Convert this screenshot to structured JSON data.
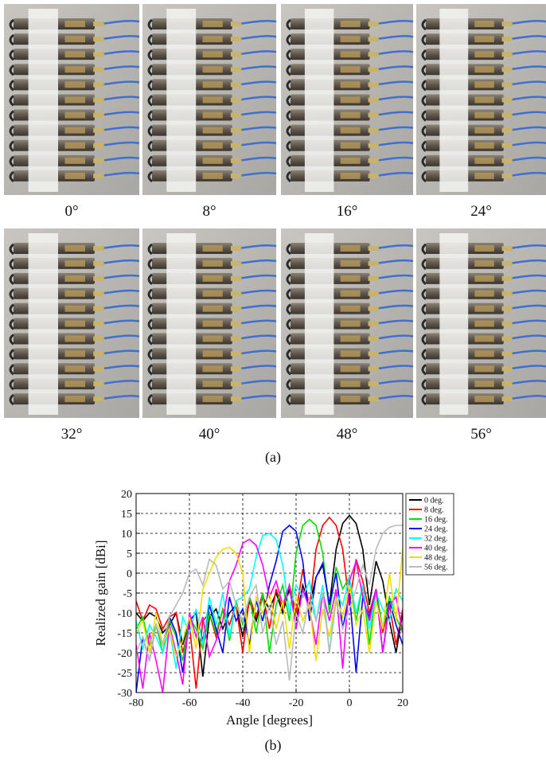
{
  "photos": {
    "captions": [
      "0°",
      "8°",
      "16°",
      "24°",
      "32°",
      "40°",
      "48°",
      "56°"
    ],
    "label": "(a)"
  },
  "chart_data": {
    "type": "line",
    "x_label": "Angle [degrees]",
    "y_label": "Realized gain [dBi]",
    "x": [
      -80,
      -77.5,
      -75,
      -72.5,
      -70,
      -67.5,
      -65,
      -62.5,
      -60,
      -57.5,
      -55,
      -52.5,
      -50,
      -47.5,
      -45,
      -42.5,
      -40,
      -37.5,
      -35,
      -32.5,
      -30,
      -27.5,
      -25,
      -22.5,
      -20,
      -17.5,
      -15,
      -12.5,
      -10,
      -7.5,
      -5,
      -2.5,
      0,
      2.5,
      5,
      7.5,
      10,
      12.5,
      15,
      17.5,
      20
    ],
    "xlim": [
      -80,
      20
    ],
    "xticks": [
      -80,
      -60,
      -40,
      -20,
      0,
      20
    ],
    "ylim": [
      -30,
      20
    ],
    "yticks": [
      -30,
      -25,
      -20,
      -15,
      -10,
      -5,
      0,
      5,
      10,
      15,
      20
    ],
    "grid": true,
    "legend": "upper right",
    "series": [
      {
        "name": "0 deg.",
        "color": "#000000",
        "values": [
          -10,
          -12,
          -10,
          -11,
          -15,
          -13,
          -10,
          -18,
          -12,
          -10,
          -26,
          -11,
          -9,
          -14,
          -10,
          -8,
          -16,
          -7,
          -12,
          -6,
          -9,
          -5,
          -10,
          -4,
          -12,
          -3,
          -8,
          -1,
          2,
          -8,
          6,
          12.5,
          14.5,
          12.5,
          6,
          -8,
          3,
          -2,
          -12,
          -20,
          -10
        ]
      },
      {
        "name": "8 deg.",
        "color": "#ff0000",
        "values": [
          -7,
          -12,
          -8,
          -9,
          -14,
          -11,
          -10,
          -20,
          -13,
          -29,
          -12,
          -10,
          -16,
          -9,
          -13,
          -8,
          -20,
          -6,
          -11,
          -5,
          -14,
          -4,
          -9,
          -3,
          -10,
          1,
          -9,
          6,
          12,
          14,
          12,
          6,
          -8,
          3.5,
          -2,
          -10,
          -4,
          -15,
          -8,
          -18,
          -9
        ]
      },
      {
        "name": "16 deg.",
        "color": "#00dd00",
        "values": [
          -14,
          -11,
          -18,
          -13,
          -20,
          -12,
          -16,
          -22,
          -11,
          -14,
          -19,
          -10,
          -15,
          -9,
          -17,
          -7,
          -13,
          -6,
          -15,
          -5,
          -20,
          -8,
          -3,
          -12,
          5,
          12,
          13.5,
          12,
          5,
          -10,
          1.5,
          -4,
          -1,
          -12,
          -3,
          -18,
          -4,
          -14,
          -6,
          -11,
          -15
        ]
      },
      {
        "name": "24 deg.",
        "color": "#0000ff",
        "values": [
          -30,
          -16,
          -22,
          -13,
          -18,
          -11,
          -15,
          -25,
          -12,
          -10,
          -17,
          -8,
          -14,
          -20,
          -6,
          -12,
          -9,
          -18,
          -7,
          -12,
          -3,
          3,
          10.5,
          12,
          10.5,
          3,
          -12,
          -1,
          2.5,
          -8,
          0,
          -14,
          -5,
          -25,
          -6,
          -11,
          -4,
          -20,
          -7,
          -13,
          -18
        ]
      },
      {
        "name": "32 deg.",
        "color": "#00ffff",
        "values": [
          -12,
          -19,
          -13,
          -16,
          -20,
          -14,
          -24,
          -11,
          -15,
          -9,
          -18,
          -6,
          -13,
          -5,
          -16,
          -7,
          -6,
          -4,
          4,
          9.5,
          10,
          8.5,
          2,
          -10,
          -3,
          -6,
          -2,
          -12,
          -3,
          -20,
          -5,
          -8,
          -1,
          -10,
          -3,
          -14,
          -5,
          -9,
          -12,
          -4,
          -7
        ]
      },
      {
        "name": "40 deg.",
        "color": "#ff00ff",
        "values": [
          -18,
          -29,
          -15,
          -22,
          -30,
          -13,
          -20,
          -28,
          -10,
          -16,
          -11,
          -21,
          -17,
          -12,
          -2,
          2,
          7.5,
          8.5,
          7,
          2,
          -6,
          -2,
          -8,
          -3,
          -14,
          -4,
          -9,
          -18,
          -5,
          -12,
          -4,
          -24,
          -2,
          3,
          -6,
          -12,
          -4,
          -20,
          -8,
          -6,
          -15
        ]
      },
      {
        "name": "48 deg.",
        "color": "#f0e000",
        "values": [
          -15,
          -12,
          -20,
          -10,
          -18,
          -14,
          -21,
          -17,
          -11,
          -19,
          -4,
          0,
          4,
          6,
          6.5,
          5,
          0,
          -20,
          -6,
          -10,
          -5,
          -14,
          -7,
          -19,
          -6,
          -12,
          -8,
          -22,
          -9,
          -16,
          -6,
          -11,
          -3,
          -13,
          -9,
          -20,
          -7,
          -14,
          0,
          -12,
          6
        ]
      },
      {
        "name": "56 deg.",
        "color": "#bbbbbb",
        "values": [
          -20,
          -16,
          -22,
          -13,
          -18,
          -11,
          -8,
          -5,
          0,
          1,
          -3,
          3.5,
          2,
          -4,
          -2,
          -8,
          -12,
          -6,
          -3,
          -15,
          -8,
          -18,
          -12,
          -27,
          -10,
          -15,
          -6,
          -12,
          -5,
          -20,
          -7,
          -14,
          -9,
          -4,
          2,
          -3,
          6,
          10,
          11.5,
          12,
          12
        ]
      }
    ]
  },
  "chart_label": "(b)"
}
